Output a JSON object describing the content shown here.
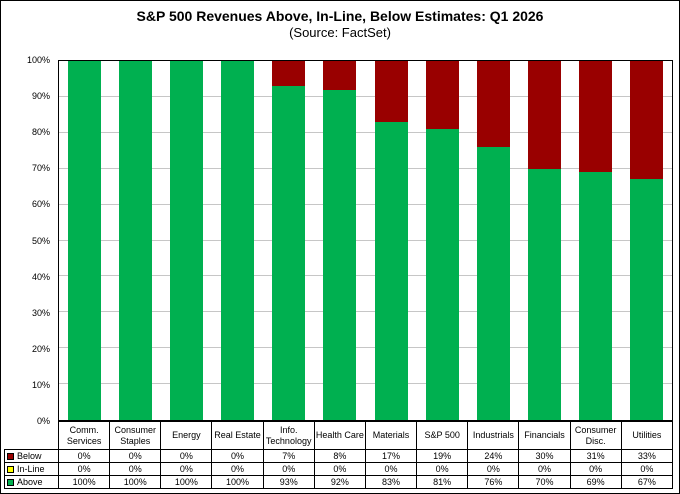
{
  "chart": {
    "title": "S&P 500 Revenues Above, In-Line, Below Estimates: Q1 2026",
    "subtitle": "(Source: FactSet)"
  },
  "chart_data": {
    "type": "bar",
    "stacked": true,
    "title": "S&P 500 Revenues Above, In-Line, Below Estimates: Q1 2026",
    "subtitle": "(Source: FactSet)",
    "categories": [
      "Comm. Services",
      "Consumer Staples",
      "Energy",
      "Real Estate",
      "Info. Technology",
      "Health Care",
      "Materials",
      "S&P 500",
      "Industrials",
      "Financials",
      "Consumer Disc.",
      "Utilities"
    ],
    "series": [
      {
        "name": "Below",
        "color": "#990000",
        "values": [
          0,
          0,
          0,
          0,
          7,
          8,
          17,
          19,
          24,
          30,
          31,
          33
        ]
      },
      {
        "name": "In-Line",
        "color": "#FFFF00",
        "values": [
          0,
          0,
          0,
          0,
          0,
          0,
          0,
          0,
          0,
          0,
          0,
          0
        ]
      },
      {
        "name": "Above",
        "color": "#00B050",
        "values": [
          100,
          100,
          100,
          100,
          93,
          92,
          83,
          81,
          76,
          70,
          69,
          67
        ]
      }
    ],
    "xlabel": "",
    "ylabel": "",
    "ylim": [
      0,
      100
    ],
    "ytick_step": 10,
    "ytick_labels": [
      "0%",
      "10%",
      "20%",
      "30%",
      "40%",
      "50%",
      "60%",
      "70%",
      "80%",
      "90%",
      "100%"
    ],
    "grid": true,
    "gridline_color": "#c6c6c6",
    "legend_position": "bottom-left-table",
    "value_suffix": "%"
  }
}
